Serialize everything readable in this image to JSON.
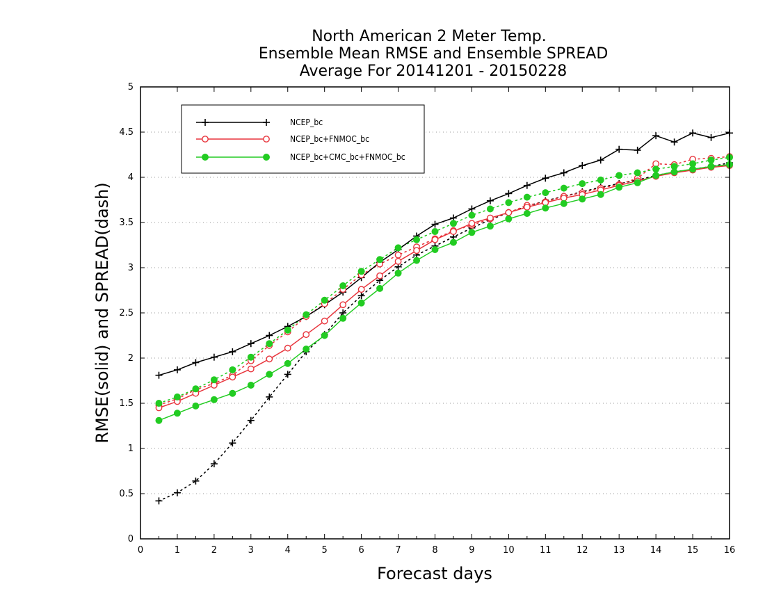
{
  "chart_data": {
    "type": "line",
    "title": [
      "North American 2 Meter Temp.",
      "Ensemble Mean RMSE and Ensemble SPREAD",
      "Average For 20141201 - 20150228"
    ],
    "xlabel": "Forecast days",
    "ylabel": "RMSE(solid) and SPREAD(dash)",
    "xlim": [
      0,
      16
    ],
    "ylim": [
      0,
      5
    ],
    "xticks": [
      0,
      1,
      2,
      3,
      4,
      5,
      6,
      7,
      8,
      9,
      10,
      11,
      12,
      13,
      14,
      15,
      16
    ],
    "yticks": [
      0,
      0.5,
      1,
      1.5,
      2,
      2.5,
      3,
      3.5,
      4,
      4.5,
      5
    ],
    "grid": "horizontal dotted",
    "legend_position": "top-left",
    "x": [
      0.5,
      1,
      1.5,
      2,
      2.5,
      3,
      3.5,
      4,
      4.5,
      5,
      5.5,
      6,
      6.5,
      7,
      7.5,
      8,
      8.5,
      9,
      9.5,
      10,
      10.5,
      11,
      11.5,
      12,
      12.5,
      13,
      13.5,
      14,
      14.5,
      15,
      15.5,
      16
    ],
    "series": [
      {
        "name": "NCEP_bc",
        "color": "#000000",
        "marker": "plus",
        "rmse": [
          1.81,
          1.87,
          1.95,
          2.01,
          2.07,
          2.16,
          2.25,
          2.35,
          2.46,
          2.59,
          2.73,
          2.89,
          3.06,
          3.2,
          3.35,
          3.48,
          3.55,
          3.65,
          3.74,
          3.82,
          3.91,
          3.99,
          4.05,
          4.13,
          4.19,
          4.31,
          4.3,
          4.46,
          4.39,
          4.49,
          4.44,
          4.49
        ],
        "spread": [
          0.42,
          0.51,
          0.64,
          0.83,
          1.06,
          1.31,
          1.57,
          1.82,
          2.07,
          2.26,
          2.5,
          2.69,
          2.86,
          3.01,
          3.14,
          3.24,
          3.34,
          3.44,
          3.53,
          3.61,
          3.68,
          3.74,
          3.79,
          3.84,
          3.89,
          3.93,
          3.97,
          4.02,
          4.06,
          4.09,
          4.12,
          4.16
        ]
      },
      {
        "name": "NCEP_bc+FNMOC_bc",
        "color": "#e8343c",
        "marker": "open-circle",
        "rmse": [
          1.45,
          1.52,
          1.61,
          1.7,
          1.79,
          1.88,
          1.99,
          2.11,
          2.26,
          2.41,
          2.59,
          2.76,
          2.91,
          3.07,
          3.19,
          3.31,
          3.4,
          3.49,
          3.55,
          3.61,
          3.67,
          3.72,
          3.77,
          3.81,
          3.86,
          3.91,
          3.96,
          4.01,
          4.05,
          4.08,
          4.11,
          4.13
        ],
        "spread": [
          1.48,
          1.55,
          1.65,
          1.72,
          1.81,
          1.97,
          2.14,
          2.29,
          2.46,
          2.6,
          2.76,
          2.92,
          3.04,
          3.14,
          3.23,
          3.32,
          3.41,
          3.47,
          3.54,
          3.61,
          3.69,
          3.73,
          3.79,
          3.83,
          3.88,
          3.92,
          3.99,
          4.15,
          4.14,
          4.2,
          4.21,
          4.23
        ]
      },
      {
        "name": "NCEP_bc+CMC_bc+FNMOC_bc",
        "color": "#22cc22",
        "marker": "filled-circle",
        "rmse": [
          1.31,
          1.39,
          1.47,
          1.54,
          1.61,
          1.7,
          1.82,
          1.94,
          2.1,
          2.25,
          2.44,
          2.61,
          2.77,
          2.94,
          3.08,
          3.2,
          3.28,
          3.39,
          3.46,
          3.54,
          3.6,
          3.66,
          3.71,
          3.76,
          3.81,
          3.89,
          3.94,
          4.02,
          4.06,
          4.09,
          4.12,
          4.14
        ],
        "spread": [
          1.5,
          1.57,
          1.66,
          1.76,
          1.87,
          2.01,
          2.16,
          2.31,
          2.48,
          2.64,
          2.8,
          2.96,
          3.09,
          3.22,
          3.31,
          3.4,
          3.49,
          3.58,
          3.65,
          3.72,
          3.78,
          3.83,
          3.88,
          3.93,
          3.97,
          4.02,
          4.05,
          4.09,
          4.12,
          4.15,
          4.19,
          4.22
        ]
      }
    ]
  }
}
